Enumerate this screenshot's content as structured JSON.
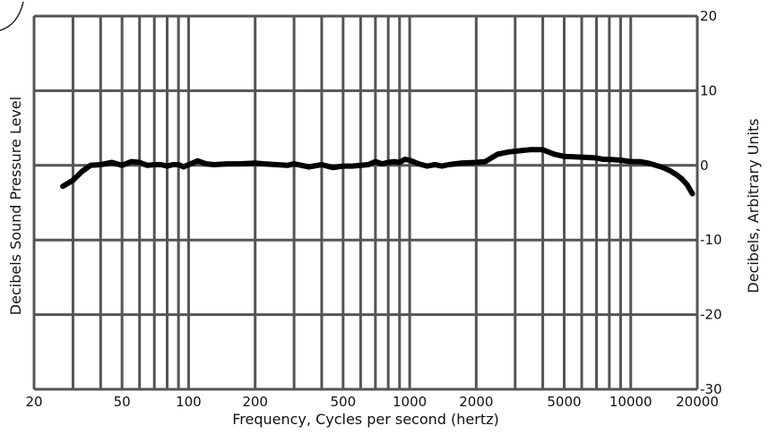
{
  "chart_data": {
    "type": "line",
    "title": "",
    "xlabel": "Frequency, Cycles per second (hertz)",
    "ylabel_left": "Decibels Sound Pressure Level",
    "ylabel_right": "Decibels, Arbitrary Units",
    "x_scale": "log",
    "xlim": [
      20,
      20000
    ],
    "ylim": [
      -30,
      20
    ],
    "x_ticks": [
      {
        "value": 20,
        "label": "20"
      },
      {
        "value": 50,
        "label": "50"
      },
      {
        "value": 100,
        "label": "100"
      },
      {
        "value": 200,
        "label": "200"
      },
      {
        "value": 500,
        "label": "500"
      },
      {
        "value": 1000,
        "label": "1000"
      },
      {
        "value": 2000,
        "label": "2000"
      },
      {
        "value": 5000,
        "label": "5000"
      },
      {
        "value": 10000,
        "label": "10000"
      },
      {
        "value": 20000,
        "label": "20000"
      }
    ],
    "y_ticks": [
      {
        "value": 20,
        "label": "20"
      },
      {
        "value": 10,
        "label": "10"
      },
      {
        "value": 0,
        "label": "0"
      },
      {
        "value": -10,
        "label": "-10"
      },
      {
        "value": -20,
        "label": "-20"
      },
      {
        "value": -30,
        "label": "-30"
      }
    ],
    "grid": true,
    "line_color": "#000000",
    "grid_color": "#555555",
    "series": [
      {
        "x": [
          27,
          30,
          33,
          36,
          40,
          45,
          50,
          55,
          60,
          65,
          70,
          75,
          80,
          85,
          90,
          95,
          100,
          110,
          120,
          130,
          150,
          170,
          200,
          220,
          250,
          280,
          300,
          350,
          400,
          450,
          500,
          550,
          600,
          650,
          700,
          750,
          800,
          850,
          900,
          950,
          1000,
          1100,
          1200,
          1300,
          1400,
          1500,
          1700,
          2000,
          2200,
          2500,
          2800,
          3000,
          3500,
          4000,
          4500,
          5000,
          6000,
          7000,
          7500,
          8000,
          9000,
          10000,
          11000,
          12000,
          13000,
          14000,
          15000,
          16000,
          17000,
          18000,
          19000
        ],
        "y": [
          -2.8,
          -2,
          -0.8,
          0,
          0.1,
          0.4,
          0,
          0.5,
          0.4,
          0,
          0.1,
          0.1,
          -0.1,
          0.1,
          0.1,
          -0.2,
          0.1,
          0.6,
          0.2,
          0.1,
          0.2,
          0.2,
          0.3,
          0.2,
          0.1,
          0,
          0.2,
          -0.2,
          0.1,
          -0.3,
          -0.1,
          -0.1,
          0,
          0.1,
          0.5,
          0.2,
          0.4,
          0.5,
          0.4,
          0.8,
          0.7,
          0.2,
          -0.1,
          0.1,
          -0.1,
          0.1,
          0.3,
          0.4,
          0.5,
          1.5,
          1.8,
          1.9,
          2.1,
          2.1,
          1.5,
          1.2,
          1.1,
          1,
          0.8,
          0.8,
          0.7,
          0.5,
          0.5,
          0.3,
          0,
          -0.3,
          -0.7,
          -1.2,
          -1.8,
          -2.6,
          -3.8
        ]
      }
    ]
  }
}
